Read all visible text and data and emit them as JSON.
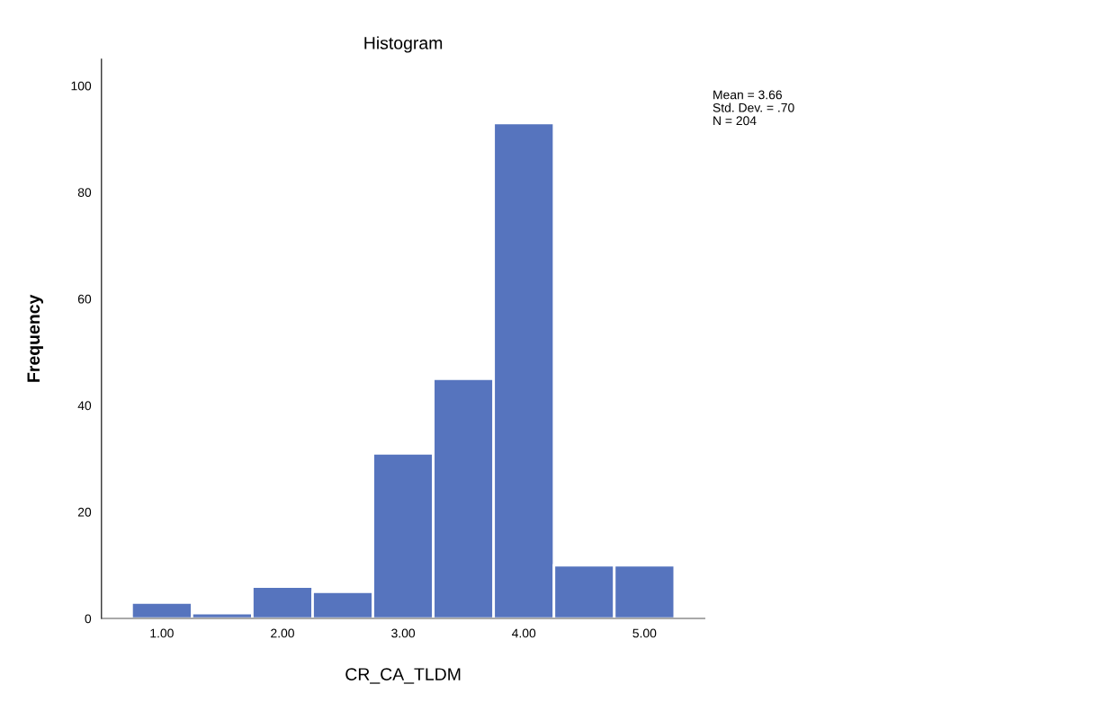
{
  "chart_data": {
    "type": "histogram",
    "title": "Histogram",
    "xlabel": "CR_CA_TLDM",
    "ylabel": "Frequency",
    "bins": [
      0.75,
      1.25,
      1.75,
      2.25,
      2.75,
      3.25,
      3.75,
      4.25,
      4.75,
      5.25
    ],
    "values": [
      3,
      1,
      6,
      5,
      31,
      45,
      93,
      10,
      10
    ],
    "color": "#5674be",
    "xlim": [
      0.5,
      5.5
    ],
    "xticks": [
      {
        "value": 1,
        "label": "1.00"
      },
      {
        "value": 2,
        "label": "2.00"
      },
      {
        "value": 3,
        "label": "3.00"
      },
      {
        "value": 4,
        "label": "4.00"
      },
      {
        "value": 5,
        "label": "5.00"
      }
    ],
    "ylim": [
      0,
      105
    ],
    "yticks": [
      0,
      20,
      40,
      60,
      80,
      100
    ],
    "grid": false,
    "legend": false,
    "annotations": [
      "Mean = 3.66",
      "Std. Dev. = .70",
      "N = 204"
    ]
  }
}
